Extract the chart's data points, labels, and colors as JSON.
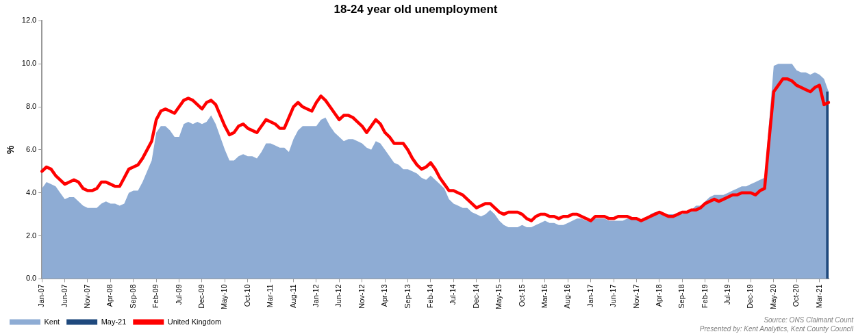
{
  "chart_data": {
    "type": "area",
    "title": "18-24 year old unemployment",
    "ylabel": "%",
    "categories": [
      "Jan-07",
      null,
      null,
      null,
      null,
      "Jun-07",
      null,
      null,
      null,
      null,
      "Nov-07",
      null,
      null,
      null,
      null,
      "Apr-08",
      null,
      null,
      null,
      null,
      "Sep-08",
      null,
      null,
      null,
      null,
      "Feb-09",
      null,
      null,
      null,
      null,
      "Jul-09",
      null,
      null,
      null,
      null,
      "Dec-09",
      null,
      null,
      null,
      null,
      "May-10",
      null,
      null,
      null,
      null,
      "Oct-10",
      null,
      null,
      null,
      null,
      "Mar-11",
      null,
      null,
      null,
      null,
      "Aug-11",
      null,
      null,
      null,
      null,
      "Jan-12",
      null,
      null,
      null,
      null,
      "Jun-12",
      null,
      null,
      null,
      null,
      "Nov-12",
      null,
      null,
      null,
      null,
      "Apr-13",
      null,
      null,
      null,
      null,
      "Sep-13",
      null,
      null,
      null,
      null,
      "Feb-14",
      null,
      null,
      null,
      null,
      "Jul-14",
      null,
      null,
      null,
      null,
      "Dec-14",
      null,
      null,
      null,
      null,
      "May-15",
      null,
      null,
      null,
      null,
      "Oct-15",
      null,
      null,
      null,
      null,
      "Mar-16",
      null,
      null,
      null,
      null,
      "Aug-16",
      null,
      null,
      null,
      null,
      "Jan-17",
      null,
      null,
      null,
      null,
      "Jun-17",
      null,
      null,
      null,
      null,
      "Nov-17",
      null,
      null,
      null,
      null,
      "Apr-18",
      null,
      null,
      null,
      null,
      "Sep-18",
      null,
      null,
      null,
      null,
      "Feb-19",
      null,
      null,
      null,
      null,
      "Jul-19",
      null,
      null,
      null,
      null,
      "Dec-19",
      null,
      null,
      null,
      null,
      "May-20",
      null,
      null,
      null,
      null,
      "Oct-20",
      null,
      null,
      null,
      null,
      "Mar-21",
      null,
      null
    ],
    "series": [
      {
        "name": "Kent",
        "color": "#8eacd4",
        "values": [
          4.2,
          4.5,
          4.4,
          4.3,
          4.0,
          3.7,
          3.8,
          3.8,
          3.6,
          3.4,
          3.3,
          3.3,
          3.3,
          3.5,
          3.6,
          3.5,
          3.5,
          3.4,
          3.5,
          4.0,
          4.1,
          4.1,
          4.5,
          5.0,
          5.5,
          6.8,
          7.1,
          7.1,
          6.9,
          6.6,
          6.6,
          7.2,
          7.3,
          7.2,
          7.3,
          7.2,
          7.3,
          7.6,
          7.2,
          6.6,
          6.0,
          5.5,
          5.5,
          5.7,
          5.8,
          5.7,
          5.7,
          5.6,
          5.9,
          6.3,
          6.3,
          6.2,
          6.1,
          6.1,
          5.9,
          6.5,
          6.9,
          7.1,
          7.1,
          7.1,
          7.1,
          7.4,
          7.5,
          7.1,
          6.8,
          6.6,
          6.4,
          6.5,
          6.5,
          6.4,
          6.3,
          6.1,
          6.0,
          6.4,
          6.3,
          6.0,
          5.7,
          5.4,
          5.3,
          5.1,
          5.1,
          5.0,
          4.9,
          4.7,
          4.6,
          4.8,
          4.6,
          4.4,
          4.2,
          3.7,
          3.5,
          3.4,
          3.3,
          3.3,
          3.1,
          3.0,
          2.9,
          3.0,
          3.2,
          3.0,
          2.7,
          2.5,
          2.4,
          2.4,
          2.4,
          2.5,
          2.4,
          2.4,
          2.5,
          2.6,
          2.7,
          2.6,
          2.6,
          2.5,
          2.5,
          2.6,
          2.7,
          2.8,
          2.8,
          2.7,
          2.7,
          2.8,
          2.8,
          2.8,
          2.7,
          2.7,
          2.7,
          2.7,
          2.8,
          2.8,
          2.8,
          2.7,
          2.8,
          3.0,
          3.1,
          3.1,
          3.0,
          3.0,
          3.0,
          3.0,
          3.0,
          3.1,
          3.2,
          3.4,
          3.4,
          3.6,
          3.8,
          3.9,
          3.9,
          3.9,
          4.0,
          4.1,
          4.2,
          4.3,
          4.3,
          4.4,
          4.5,
          4.6,
          4.7,
          7.3,
          9.9,
          10.0,
          10.0,
          10.0,
          10.0,
          9.7,
          9.6,
          9.6,
          9.5,
          9.6,
          9.5,
          9.3,
          8.7
        ]
      },
      {
        "name": "May-21",
        "type": "bar",
        "color": "#1f497d",
        "values": [
          null,
          null,
          null,
          null,
          null,
          null,
          null,
          null,
          null,
          null,
          null,
          null,
          null,
          null,
          null,
          null,
          null,
          null,
          null,
          null,
          null,
          null,
          null,
          null,
          null,
          null,
          null,
          null,
          null,
          null,
          null,
          null,
          null,
          null,
          null,
          null,
          null,
          null,
          null,
          null,
          null,
          null,
          null,
          null,
          null,
          null,
          null,
          null,
          null,
          null,
          null,
          null,
          null,
          null,
          null,
          null,
          null,
          null,
          null,
          null,
          null,
          null,
          null,
          null,
          null,
          null,
          null,
          null,
          null,
          null,
          null,
          null,
          null,
          null,
          null,
          null,
          null,
          null,
          null,
          null,
          null,
          null,
          null,
          null,
          null,
          null,
          null,
          null,
          null,
          null,
          null,
          null,
          null,
          null,
          null,
          null,
          null,
          null,
          null,
          null,
          null,
          null,
          null,
          null,
          null,
          null,
          null,
          null,
          null,
          null,
          null,
          null,
          null,
          null,
          null,
          null,
          null,
          null,
          null,
          null,
          null,
          null,
          null,
          null,
          null,
          null,
          null,
          null,
          null,
          null,
          null,
          null,
          null,
          null,
          null,
          null,
          null,
          null,
          null,
          null,
          null,
          null,
          null,
          null,
          null,
          null,
          null,
          null,
          null,
          null,
          null,
          null,
          null,
          null,
          null,
          null,
          null,
          null,
          null,
          null,
          null,
          null,
          null,
          null,
          null,
          null,
          null,
          null,
          null,
          null,
          null,
          null,
          8.7
        ]
      },
      {
        "name": "United Kingdom",
        "type": "line",
        "color": "#ff0000",
        "values": [
          5.0,
          5.2,
          5.1,
          4.8,
          4.6,
          4.4,
          4.5,
          4.6,
          4.5,
          4.2,
          4.1,
          4.1,
          4.2,
          4.5,
          4.5,
          4.4,
          4.3,
          4.3,
          4.7,
          5.1,
          5.2,
          5.3,
          5.6,
          6.0,
          6.4,
          7.4,
          7.8,
          7.9,
          7.8,
          7.7,
          8.0,
          8.3,
          8.4,
          8.3,
          8.1,
          7.9,
          8.2,
          8.3,
          8.1,
          7.6,
          7.1,
          6.7,
          6.8,
          7.1,
          7.2,
          7.0,
          6.9,
          6.8,
          7.1,
          7.4,
          7.3,
          7.2,
          7.0,
          7.0,
          7.5,
          8.0,
          8.2,
          8.0,
          7.9,
          7.8,
          8.2,
          8.5,
          8.3,
          8.0,
          7.7,
          7.4,
          7.6,
          7.6,
          7.5,
          7.3,
          7.1,
          6.8,
          7.1,
          7.4,
          7.2,
          6.8,
          6.6,
          6.3,
          6.3,
          6.3,
          6.0,
          5.6,
          5.3,
          5.1,
          5.2,
          5.4,
          5.1,
          4.7,
          4.4,
          4.1,
          4.1,
          4.0,
          3.9,
          3.7,
          3.5,
          3.3,
          3.4,
          3.5,
          3.5,
          3.3,
          3.1,
          3.0,
          3.1,
          3.1,
          3.1,
          3.0,
          2.8,
          2.7,
          2.9,
          3.0,
          3.0,
          2.9,
          2.9,
          2.8,
          2.9,
          2.9,
          3.0,
          3.0,
          2.9,
          2.8,
          2.7,
          2.9,
          2.9,
          2.9,
          2.8,
          2.8,
          2.9,
          2.9,
          2.9,
          2.8,
          2.8,
          2.7,
          2.8,
          2.9,
          3.0,
          3.1,
          3.0,
          2.9,
          2.9,
          3.0,
          3.1,
          3.1,
          3.2,
          3.2,
          3.3,
          3.5,
          3.6,
          3.7,
          3.6,
          3.7,
          3.8,
          3.9,
          3.9,
          4.0,
          4.0,
          4.0,
          3.9,
          4.1,
          4.2,
          6.5,
          8.7,
          9.0,
          9.3,
          9.3,
          9.2,
          9.0,
          8.9,
          8.8,
          8.7,
          8.9,
          9.0,
          8.1,
          8.2
        ]
      }
    ],
    "ylim": [
      0,
      12
    ],
    "yticks": [
      {
        "value": 0,
        "label": "0.0"
      },
      {
        "value": 2,
        "label": "2.0"
      },
      {
        "value": 4,
        "label": "4.0"
      },
      {
        "value": 6,
        "label": "6.0"
      },
      {
        "value": 8,
        "label": "8.0"
      },
      {
        "value": 10,
        "label": "10.0"
      },
      {
        "value": 12,
        "label": "12.0"
      }
    ],
    "grid": false,
    "legend": "bottom",
    "marker": "none",
    "line_style": "solid",
    "annotations": [
      "Source: ONS Claimant Count",
      "Presented by: Kent Analytics, Kent County Council"
    ]
  }
}
